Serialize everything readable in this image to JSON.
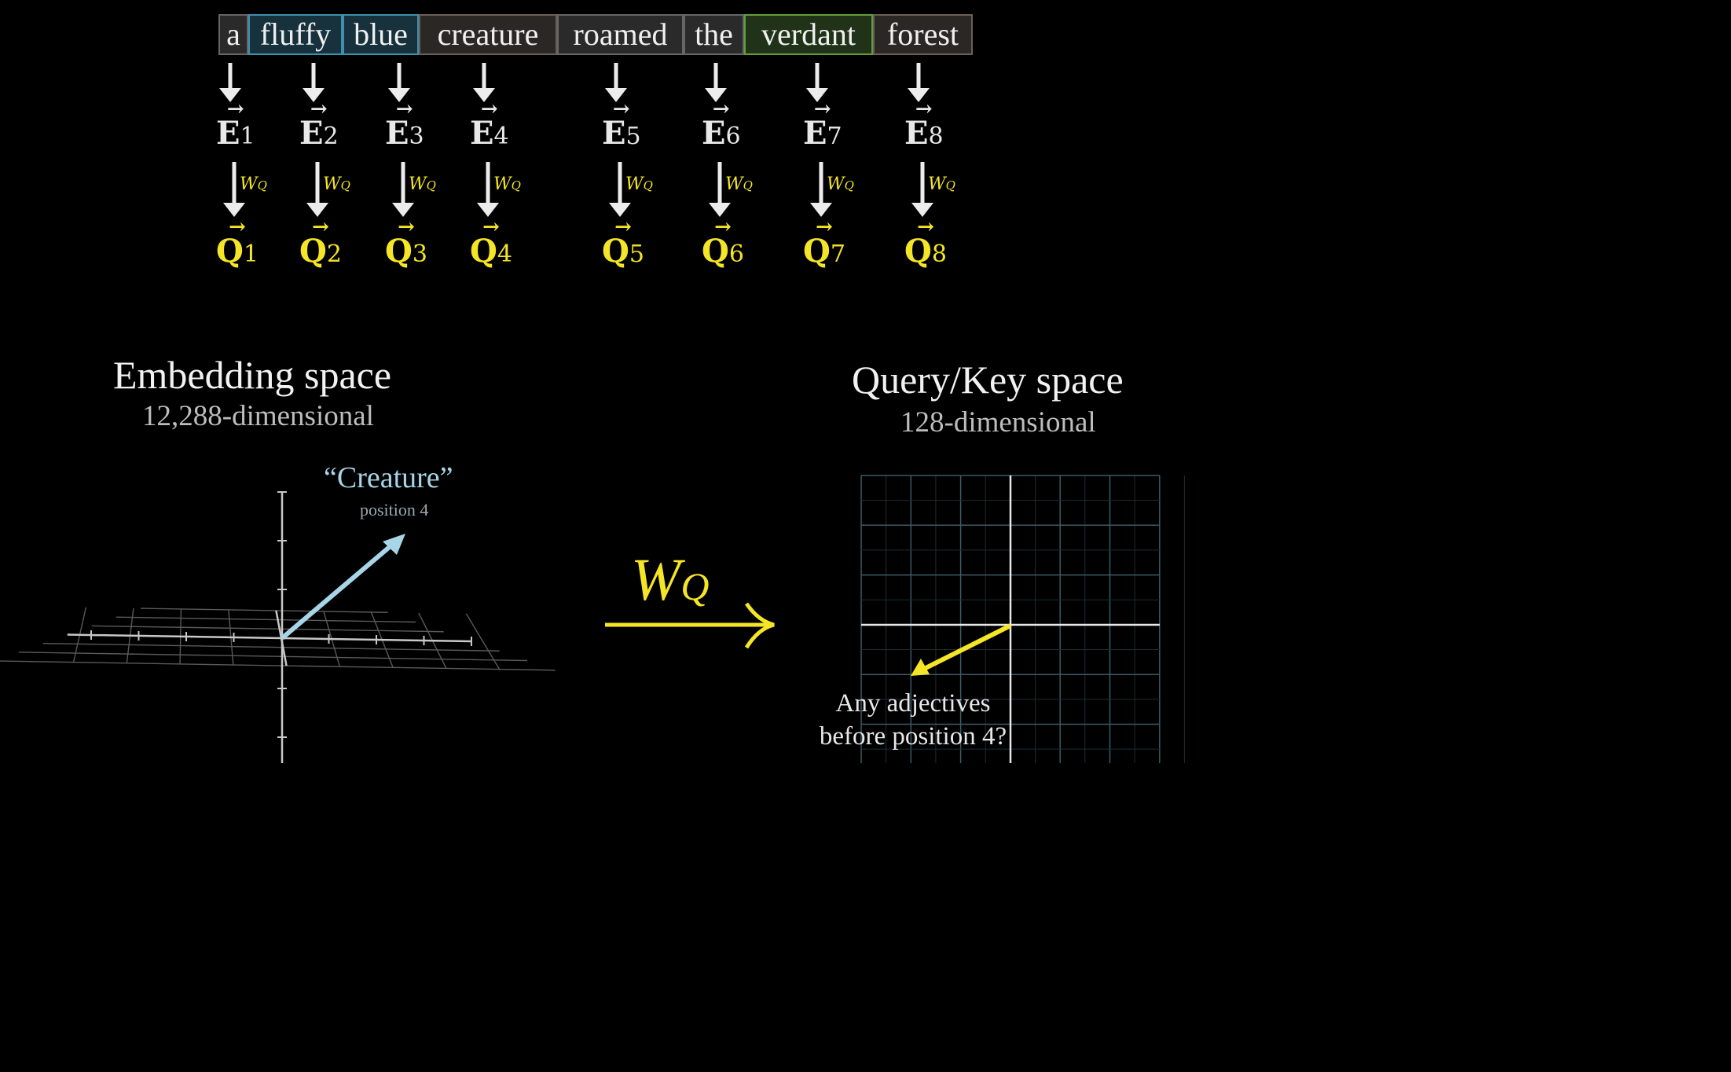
{
  "tokens": [
    {
      "text": "a",
      "style": "plain"
    },
    {
      "text": "fluffy",
      "style": "blue"
    },
    {
      "text": "blue",
      "style": "blue"
    },
    {
      "text": "creature",
      "style": "brown"
    },
    {
      "text": "roamed",
      "style": "plain"
    },
    {
      "text": "the",
      "style": "plain"
    },
    {
      "text": "verdant",
      "style": "green"
    },
    {
      "text": "forest",
      "style": "brown"
    }
  ],
  "embeddings": [
    {
      "letter": "E",
      "sub": "1",
      "arrow": "→"
    },
    {
      "letter": "E",
      "sub": "2",
      "arrow": "→"
    },
    {
      "letter": "E",
      "sub": "3",
      "arrow": "→"
    },
    {
      "letter": "E",
      "sub": "4",
      "arrow": "→"
    },
    {
      "letter": "E",
      "sub": "5",
      "arrow": "→"
    },
    {
      "letter": "E",
      "sub": "6",
      "arrow": "→"
    },
    {
      "letter": "E",
      "sub": "7",
      "arrow": "→"
    },
    {
      "letter": "E",
      "sub": "8",
      "arrow": "→"
    }
  ],
  "matrix": {
    "letter": "W",
    "sub": "Q"
  },
  "queries": [
    {
      "letter": "Q",
      "sub": "1",
      "arrow": "→"
    },
    {
      "letter": "Q",
      "sub": "2",
      "arrow": "→"
    },
    {
      "letter": "Q",
      "sub": "3",
      "arrow": "→"
    },
    {
      "letter": "Q",
      "sub": "4",
      "arrow": "→"
    },
    {
      "letter": "Q",
      "sub": "5",
      "arrow": "→"
    },
    {
      "letter": "Q",
      "sub": "6",
      "arrow": "→"
    },
    {
      "letter": "Q",
      "sub": "7",
      "arrow": "→"
    },
    {
      "letter": "Q",
      "sub": "8",
      "arrow": "→"
    }
  ],
  "embedding_space": {
    "title": "Embedding space",
    "subtitle": "12,288-dimensional",
    "vector_label": "“Creature”",
    "vector_sublabel": "position 4"
  },
  "query_space": {
    "title": "Query/Key space",
    "subtitle": "128-dimensional",
    "vector_label_line1": "Any adjectives",
    "vector_label_line2": "before position 4?"
  },
  "colors": {
    "query_yellow": "#f4e526",
    "embedding_vector": "#a8d4e8",
    "grid_line": "#3c5a66"
  }
}
